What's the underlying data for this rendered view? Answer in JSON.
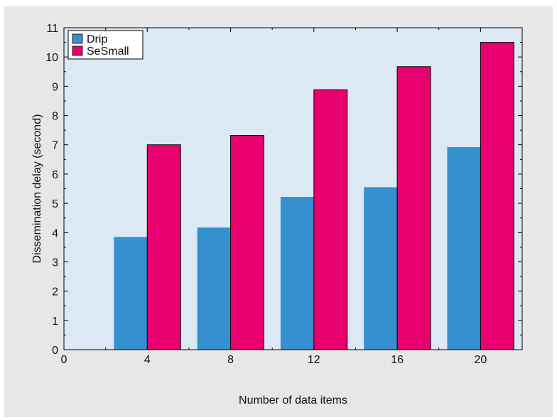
{
  "chart_data": {
    "type": "bar",
    "xlabel": "Number of data items",
    "ylabel": "Dissemination delay (second)",
    "categories": [
      "4",
      "8",
      "12",
      "16",
      "20"
    ],
    "x": [
      4,
      8,
      12,
      16,
      20
    ],
    "xlim": [
      0,
      22
    ],
    "xticks": [
      0,
      4,
      8,
      12,
      16,
      20
    ],
    "ylim": [
      0,
      11
    ],
    "yticks": [
      0,
      1,
      2,
      3,
      4,
      5,
      6,
      7,
      8,
      9,
      10,
      11
    ],
    "grid": false,
    "legend_position": "top-left",
    "series": [
      {
        "name": "Drip",
        "color": "#3590cf",
        "values": [
          3.85,
          4.17,
          5.22,
          5.55,
          6.92
        ]
      },
      {
        "name": "SeSmall",
        "color": "#e8006e",
        "values": [
          7.0,
          7.32,
          8.88,
          9.67,
          10.5
        ]
      }
    ],
    "plot_background": "#dde8f5"
  }
}
